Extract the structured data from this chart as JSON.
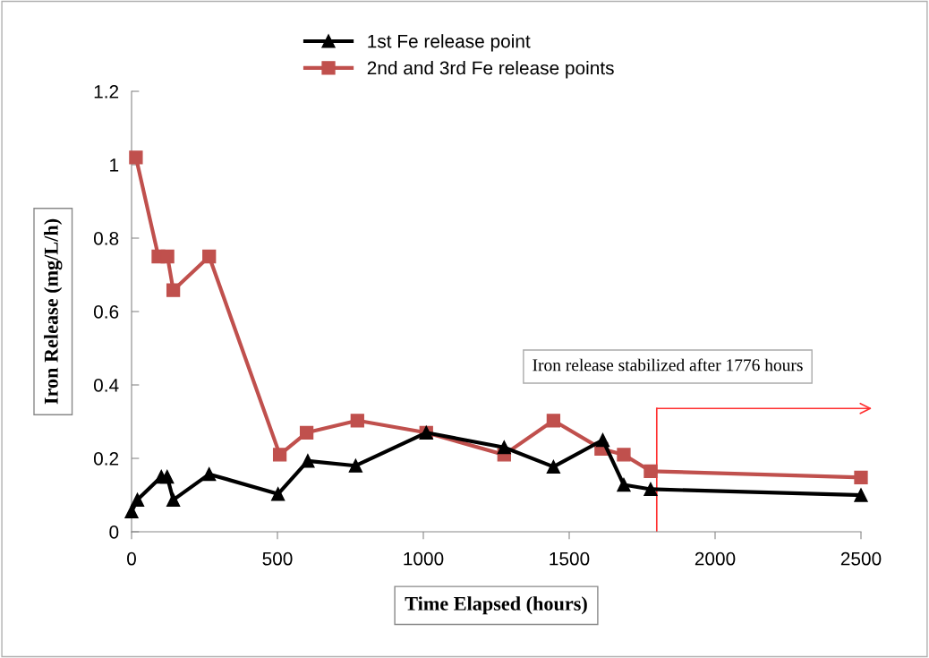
{
  "chart_data": {
    "type": "line",
    "xlabel": "Time Elapsed (hours)",
    "ylabel": "Iron Release (mg/L/h)",
    "series": [
      {
        "name": "1st Fe release point",
        "color": "#000000",
        "marker": "triangle",
        "x": [
          0,
          20,
          102,
          122,
          143,
          266,
          502,
          604,
          768,
          1010,
          1277,
          1446,
          1615,
          1687,
          1779,
          2500
        ],
        "values": [
          0.055,
          0.087,
          0.15,
          0.15,
          0.087,
          0.157,
          0.103,
          0.193,
          0.18,
          0.27,
          0.23,
          0.177,
          0.25,
          0.128,
          0.116,
          0.1
        ]
      },
      {
        "name": "2nd and 3rd Fe release points",
        "color": "#c0504d",
        "marker": "square",
        "x": [
          15,
          92,
          123,
          143,
          266,
          508,
          600,
          774,
          1010,
          1277,
          1446,
          1610,
          1687,
          1779,
          2500
        ],
        "values": [
          1.02,
          0.75,
          0.75,
          0.658,
          0.75,
          0.21,
          0.27,
          0.303,
          0.27,
          0.21,
          0.303,
          0.226,
          0.21,
          0.165,
          0.148
        ]
      }
    ],
    "annotations": [
      "Iron release stabilized after 1776 hours"
    ],
    "ref_lines": [
      {
        "axis": "x",
        "value": 1800,
        "color": "#ff3030"
      }
    ],
    "xlim": [
      0,
      2500
    ],
    "xticks": [
      0,
      500,
      1000,
      1500,
      2000,
      2500
    ],
    "ylim": [
      0,
      1.2
    ],
    "yticks": [
      0,
      0.2,
      0.4,
      0.6,
      0.8,
      1,
      1.2
    ],
    "grid": false,
    "legend": "top",
    "line_style": "solid"
  }
}
